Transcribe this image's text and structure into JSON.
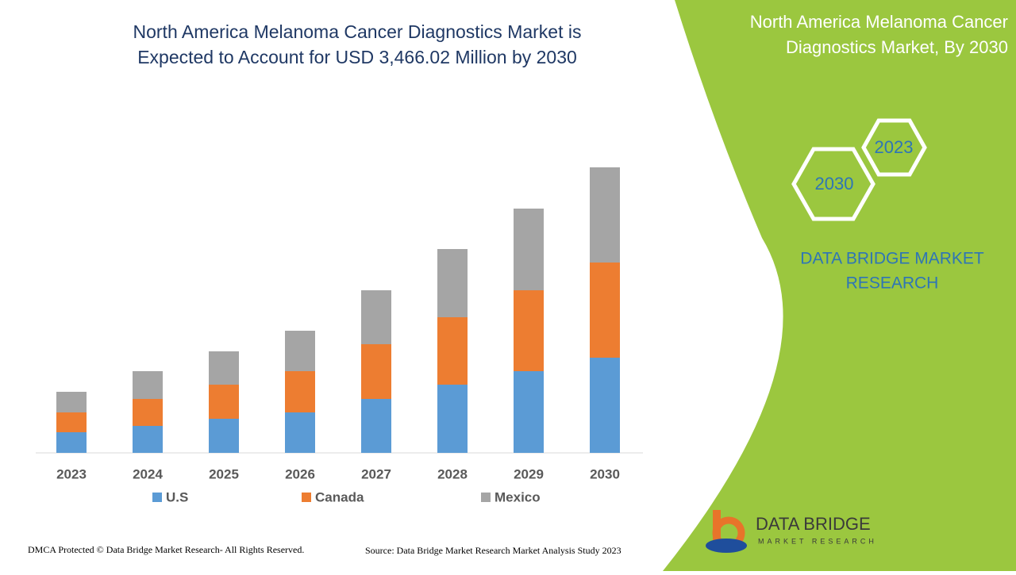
{
  "chart_data": {
    "type": "bar",
    "stacked": true,
    "title": "North America Melanoma Cancer Diagnostics Market is Expected to Account for USD 3,466.02 Million by 2030",
    "categories": [
      "2023",
      "2024",
      "2025",
      "2026",
      "2027",
      "2028",
      "2029",
      "2030"
    ],
    "series": [
      {
        "name": "U.S",
        "color": "#5b9bd5",
        "values": [
          26,
          34,
          43,
          51,
          68,
          86,
          103,
          120
        ]
      },
      {
        "name": "Canada",
        "color": "#ed7d31",
        "values": [
          25,
          34,
          43,
          52,
          69,
          85,
          102,
          120
        ]
      },
      {
        "name": "Mexico",
        "color": "#a5a5a5",
        "values": [
          26,
          35,
          42,
          51,
          68,
          86,
          103,
          120
        ]
      }
    ]
  },
  "panel": {
    "title": "North America Melanoma Cancer Diagnostics Market, By 2030",
    "hex_back": "2023",
    "hex_front": "2030",
    "brand": "DATA BRIDGE MARKET RESEARCH",
    "logo_name": "DATA BRIDGE",
    "logo_tagline": "MARKET RESEARCH"
  },
  "footer": {
    "copyright": "DMCA Protected © Data Bridge Market Research- All Rights Reserved.",
    "source": "Source: Data Bridge Market Research Market Analysis Study 2023"
  }
}
